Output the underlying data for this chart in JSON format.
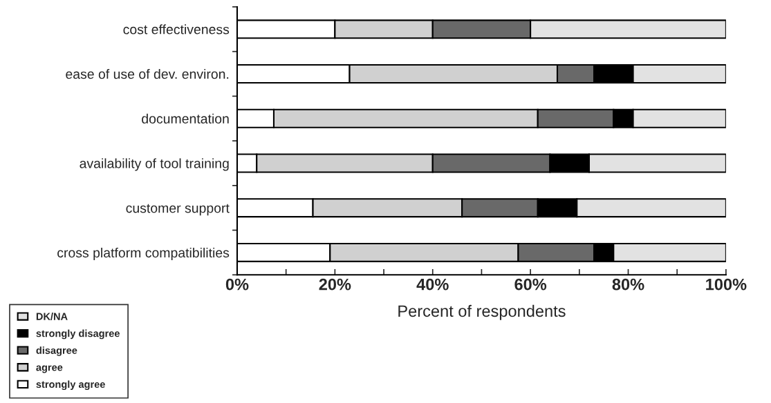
{
  "chart_data": {
    "type": "bar",
    "orientation": "horizontal",
    "stacked": true,
    "xlabel": "Percent of respondents",
    "categories": [
      "cost effectiveness",
      "ease of use of dev. environ.",
      "documentation",
      "availability of tool training",
      "customer support",
      "cross platform compatibilities"
    ],
    "series": [
      {
        "name": "strongly agree",
        "color": "#ffffff",
        "values": [
          20,
          23,
          7.5,
          4,
          15.5,
          19
        ]
      },
      {
        "name": "agree",
        "color": "#d0d0d0",
        "values": [
          20,
          42.5,
          54,
          36,
          30.5,
          38.5
        ]
      },
      {
        "name": "disagree",
        "color": "#696969",
        "values": [
          20,
          7.5,
          15.5,
          24,
          15.5,
          15.5
        ]
      },
      {
        "name": "strongly disagree",
        "color": "#000000",
        "values": [
          0,
          8,
          4,
          8,
          8,
          4
        ]
      },
      {
        "name": "DK/NA",
        "color": "#e2e2e2",
        "values": [
          40,
          19,
          19,
          28,
          30.5,
          23
        ]
      }
    ],
    "xlim": [
      0,
      100
    ],
    "xticks": [
      {
        "value": 0,
        "label": "0%"
      },
      {
        "value": 10,
        "label": null
      },
      {
        "value": 20,
        "label": "20%"
      },
      {
        "value": 30,
        "label": null
      },
      {
        "value": 40,
        "label": "40%"
      },
      {
        "value": 50,
        "label": null
      },
      {
        "value": 60,
        "label": "60%"
      },
      {
        "value": 70,
        "label": null
      },
      {
        "value": 80,
        "label": "80%"
      },
      {
        "value": 90,
        "label": null
      },
      {
        "value": 100,
        "label": "100%"
      }
    ],
    "grid": false,
    "legend": "bottom left"
  }
}
